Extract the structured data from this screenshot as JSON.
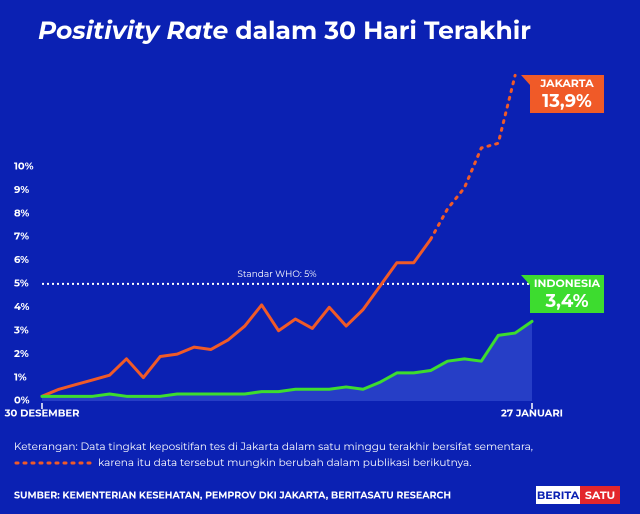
{
  "chart_data": {
    "type": "line",
    "title_emphasis": "Positivity Rate",
    "title": "dalam 30 Hari Terakhir",
    "categories": [
      "30 DESEMBER",
      null,
      null,
      null,
      null,
      null,
      null,
      null,
      null,
      null,
      null,
      null,
      null,
      null,
      null,
      null,
      null,
      null,
      null,
      null,
      null,
      null,
      null,
      null,
      null,
      null,
      null,
      null,
      null,
      "27 JANUARI"
    ],
    "series": [
      {
        "name": "JAKARTA",
        "color": "#f05a28",
        "dashed_from": 23,
        "values": [
          0.2,
          0.5,
          0.7,
          0.9,
          1.1,
          1.8,
          1.0,
          1.9,
          2.0,
          2.3,
          2.2,
          2.6,
          3.2,
          4.1,
          3.0,
          3.5,
          3.1,
          4.0,
          3.2,
          3.9,
          4.9,
          5.9,
          5.9,
          6.9,
          8.2,
          9.1,
          10.8,
          11.0,
          13.9,
          null
        ],
        "value_labels": [
          null,
          null,
          null,
          null,
          null,
          null,
          null,
          null,
          null,
          null,
          null,
          null,
          null,
          null,
          null,
          null,
          null,
          null,
          null,
          null,
          null,
          null,
          null,
          null,
          null,
          null,
          null,
          null,
          "13,9%",
          null
        ]
      },
      {
        "name": "INDONESIA",
        "color": "#3ddc2f",
        "values": [
          0.2,
          0.2,
          0.2,
          0.2,
          0.3,
          0.2,
          0.2,
          0.2,
          0.3,
          0.3,
          0.3,
          0.3,
          0.3,
          0.4,
          0.4,
          0.5,
          0.5,
          0.5,
          0.6,
          0.5,
          0.8,
          1.2,
          1.2,
          1.3,
          1.7,
          1.8,
          1.7,
          2.8,
          2.9,
          3.4
        ],
        "value_labels": [
          null,
          null,
          null,
          null,
          null,
          null,
          null,
          null,
          null,
          null,
          null,
          null,
          null,
          null,
          null,
          null,
          null,
          null,
          null,
          null,
          null,
          null,
          null,
          null,
          null,
          null,
          null,
          null,
          null,
          "3,4%"
        ]
      }
    ],
    "ylim": [
      0,
      14.3
    ],
    "yticks": [
      {
        "value": 0,
        "label": "0%"
      },
      {
        "value": 1,
        "label": "1%"
      },
      {
        "value": 2,
        "label": "2%"
      },
      {
        "value": 3,
        "label": "3%"
      },
      {
        "value": 4,
        "label": "4%"
      },
      {
        "value": 5,
        "label": "5%"
      },
      {
        "value": 6,
        "label": "6%"
      },
      {
        "value": 7,
        "label": "7%"
      },
      {
        "value": 8,
        "label": "8%"
      },
      {
        "value": 9,
        "label": "9%"
      },
      {
        "value": 10,
        "label": "10%"
      }
    ],
    "reference_line": {
      "value": 5,
      "label": "Standar WHO: 5%"
    },
    "note_1": "Keterangan: Data tingkat kepositifan tes di Jakarta dalam satu minggu terakhir bersifat sementara,",
    "note_2": "karena itu data tersebut mungkin berubah dalam publikasi berikutnya.",
    "source": "SUMBER: KEMENTERIAN KESEHATAN, PEMPROV DKI JAKARTA, BERITASATU RESEARCH",
    "logo_a": "BERITA",
    "logo_b": "SATU"
  }
}
